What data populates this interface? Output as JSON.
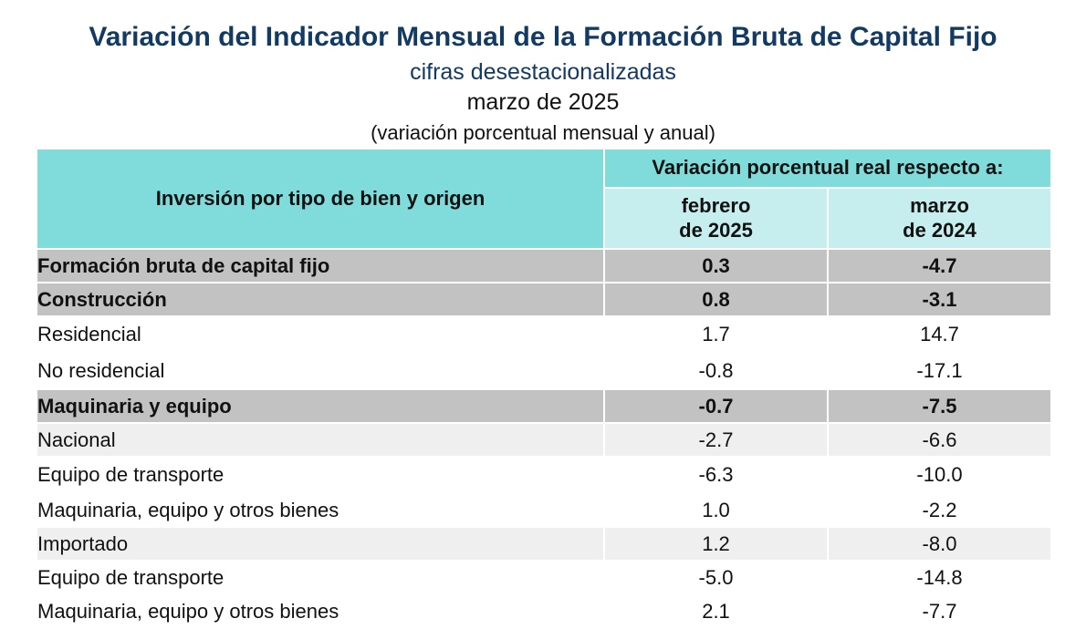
{
  "header": {
    "title": "Variación del Indicador Mensual de la Formación Bruta de Capital Fijo",
    "subtitle": "cifras desestacionalizadas",
    "period": "marzo de 2025",
    "note": "(variación porcentual mensual y anual)"
  },
  "table": {
    "row_header": "Inversión por tipo de bien y origen",
    "group_header": "Variación porcentual real respecto a:",
    "col1": {
      "line1": "febrero",
      "line2": "de 2025"
    },
    "col2": {
      "line1": "marzo",
      "line2": "de 2024"
    },
    "rows": [
      {
        "label": "Formación bruta de capital fijo",
        "feb2025": "0.3",
        "mar2024": "-4.7"
      },
      {
        "label": "Construcción",
        "feb2025": "0.8",
        "mar2024": "-3.1"
      },
      {
        "label": "Residencial",
        "feb2025": "1.7",
        "mar2024": "14.7"
      },
      {
        "label": "No residencial",
        "feb2025": "-0.8",
        "mar2024": "-17.1"
      },
      {
        "label": "Maquinaria y equipo",
        "feb2025": "-0.7",
        "mar2024": "-7.5"
      },
      {
        "label": "Nacional",
        "feb2025": "-2.7",
        "mar2024": "-6.6"
      },
      {
        "label": "Equipo de transporte",
        "feb2025": "-6.3",
        "mar2024": "-10.0"
      },
      {
        "label": "Maquinaria, equipo y otros bienes",
        "feb2025": "1.0",
        "mar2024": "-2.2"
      },
      {
        "label": "Importado",
        "feb2025": "1.2",
        "mar2024": "-8.0"
      },
      {
        "label": "Equipo de transporte",
        "feb2025": "-5.0",
        "mar2024": "-14.8"
      },
      {
        "label": "Maquinaria, equipo y otros bienes",
        "feb2025": "2.1",
        "mar2024": "-7.7"
      }
    ]
  }
}
